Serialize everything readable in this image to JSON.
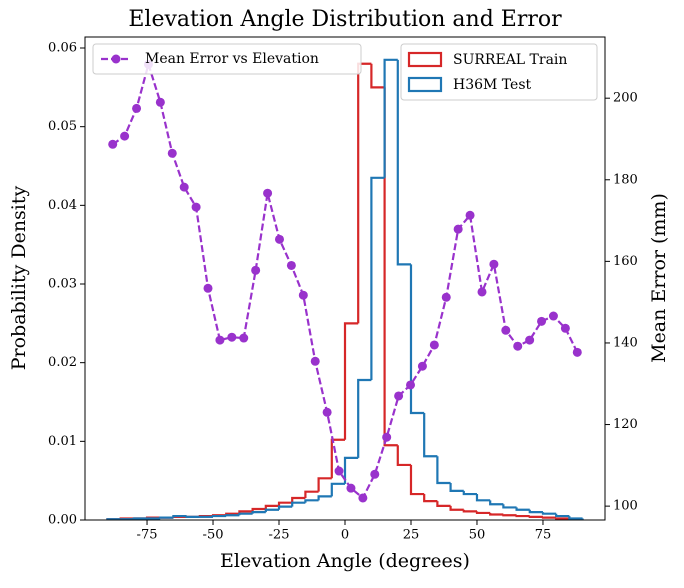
{
  "chart_data": {
    "type": "histogram",
    "title": "Elevation Angle Distribution and Error",
    "x_label": "Elevation Angle (degrees)",
    "y_label": "Probability Density",
    "y2_label": "Mean Error (mm)",
    "bins": [
      -90,
      -85,
      -80,
      -75,
      -70,
      -65,
      -60,
      -55,
      -50,
      -45,
      -40,
      -35,
      -30,
      -25,
      -20,
      -15,
      -10,
      -5,
      0,
      5,
      10,
      15,
      20,
      25,
      30,
      35,
      40,
      45,
      50,
      55,
      60,
      65,
      70,
      75,
      80,
      85,
      90
    ],
    "series": [
      {
        "name": "SURREAL Train",
        "color": "#d62728",
        "values": [
          0.0001,
          0.0002,
          0.0002,
          0.0003,
          0.0003,
          0.0004,
          0.0004,
          0.0005,
          0.0006,
          0.0008,
          0.0011,
          0.0014,
          0.0018,
          0.0022,
          0.0028,
          0.0036,
          0.0053,
          0.0102,
          0.025,
          0.058,
          0.055,
          0.0095,
          0.007,
          0.0033,
          0.0024,
          0.0018,
          0.0013,
          0.0011,
          0.0009,
          0.0007,
          0.0006,
          0.0005,
          0.0004,
          0.0003,
          0.0002,
          0.0001
        ]
      },
      {
        "name": "H36M Test",
        "color": "#1f77b4",
        "values": [
          0.0001,
          0.0001,
          0.0002,
          0.0002,
          0.0003,
          0.0005,
          0.0004,
          0.0004,
          0.0005,
          0.0006,
          0.0008,
          0.001,
          0.0013,
          0.0017,
          0.0022,
          0.0025,
          0.003,
          0.0046,
          0.0079,
          0.0178,
          0.0435,
          0.0585,
          0.0325,
          0.0136,
          0.0081,
          0.0047,
          0.0037,
          0.0033,
          0.0025,
          0.002,
          0.0016,
          0.0013,
          0.001,
          0.0008,
          0.0005,
          0.0002
        ]
      }
    ],
    "line": {
      "name": "Mean Error vs Elevation",
      "color": "#9932cc",
      "axis": "y2",
      "x": [
        -88,
        -83.49,
        -78.97,
        -74.46,
        -69.95,
        -65.44,
        -60.92,
        -56.41,
        -51.9,
        -47.38,
        -42.87,
        -38.36,
        -33.85,
        -29.33,
        -24.82,
        -20.31,
        -15.79,
        -11.28,
        -6.77,
        -2.26,
        2.26,
        6.77,
        11.28,
        15.79,
        20.31,
        24.82,
        29.33,
        33.85,
        38.36,
        42.87,
        47.38,
        51.9,
        56.41,
        60.92,
        65.44,
        69.95,
        74.46,
        78.97,
        83.49,
        88
      ],
      "values": [
        188.7,
        190.7,
        197.5,
        208.3,
        199,
        186.5,
        178.2,
        173.3,
        153.4,
        140.7,
        141.4,
        141.2,
        157.8,
        176.7,
        165.4,
        159,
        151.7,
        135.5,
        123,
        108.6,
        104.4,
        102,
        107.8,
        116.9,
        127,
        129.7,
        134.3,
        139.5,
        151.2,
        167.9,
        171.3,
        152.5,
        159.3,
        143.1,
        139.2,
        140.7,
        145.3,
        146.6,
        143.6,
        137.7
      ]
    },
    "xlim": [
      -98.5,
      98.5
    ],
    "xticks": [
      -75,
      -50,
      -25,
      0,
      25,
      50,
      75
    ],
    "ylim": [
      0,
      0.0614
    ],
    "yticks": [
      {
        "value": 0,
        "label": "0.00"
      },
      {
        "value": 0.01,
        "label": "0.01"
      },
      {
        "value": 0.02,
        "label": "0.02"
      },
      {
        "value": 0.03,
        "label": "0.03"
      },
      {
        "value": 0.04,
        "label": "0.04"
      },
      {
        "value": 0.05,
        "label": "0.05"
      },
      {
        "value": 0.06,
        "label": "0.06"
      }
    ],
    "y2lim": [
      96.6,
      215
    ],
    "y2ticks": [
      100,
      120,
      140,
      160,
      180,
      200
    ],
    "legend": "upper right",
    "line_legend": "upper left"
  }
}
